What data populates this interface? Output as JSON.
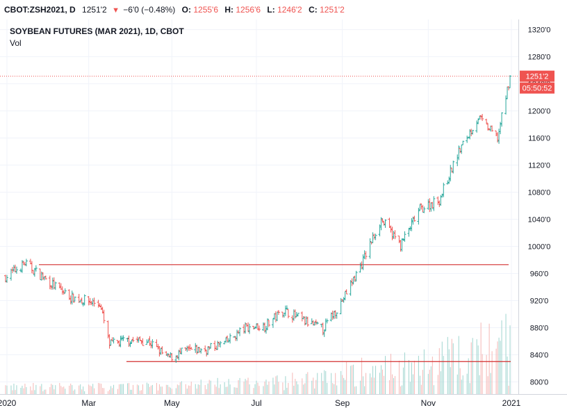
{
  "header": {
    "symbol": "CBOT:ZSH2021, D",
    "last": "1251'2",
    "change": "−6'0 (−0.48%)",
    "open_label": "O:",
    "open": "1255'6",
    "high_label": "H:",
    "high": "1256'6",
    "low_label": "L:",
    "low": "1246'2",
    "close_label": "C:",
    "close": "1251'2"
  },
  "chart_data": {
    "type": "ohlc",
    "title": "SOYBEAN FUTURES (MAR 2021), 1D, CBOT",
    "volume_label": "Vol",
    "ylim": [
      782,
      1335
    ],
    "y_ticks": [
      "1320'0",
      "1280'0",
      "1240'0",
      "1200'0",
      "1160'0",
      "1120'0",
      "1080'0",
      "1040'0",
      "1000'0",
      "960'0",
      "920'0",
      "880'0",
      "840'0",
      "800'0"
    ],
    "x_ticks": [
      "2020",
      "Mar",
      "May",
      "Jul",
      "Sep",
      "Nov",
      "2021"
    ],
    "price_tag": "1251'2",
    "countdown": "05:50:52",
    "last_price": 1251.25,
    "horizontal_lines": [
      973,
      830
    ],
    "colors": {
      "up": "#26a69a",
      "down": "#ef5350",
      "line": "#e06666",
      "grid": "#f0f3fa"
    },
    "grid": true,
    "series": [
      {
        "name": "price",
        "x": [
          "2020-01-02",
          "2020-01-16",
          "2020-02-04",
          "2020-02-18",
          "2020-03-10",
          "2020-03-17",
          "2020-03-31",
          "2020-04-14",
          "2020-04-28",
          "2020-05-12",
          "2020-05-26",
          "2020-06-09",
          "2020-06-23",
          "2020-07-07",
          "2020-07-21",
          "2020-08-04",
          "2020-08-18",
          "2020-09-01",
          "2020-09-15",
          "2020-09-29",
          "2020-10-13",
          "2020-10-27",
          "2020-11-10",
          "2020-11-24",
          "2020-12-08",
          "2020-12-22",
          "2020-12-31"
        ],
        "values": [
          955,
          975,
          945,
          925,
          915,
          855,
          862,
          860,
          835,
          846,
          848,
          858,
          880,
          883,
          906,
          890,
          878,
          920,
          975,
          1040,
          1002,
          1055,
          1069,
          1140,
          1190,
          1160,
          1251
        ]
      }
    ]
  }
}
